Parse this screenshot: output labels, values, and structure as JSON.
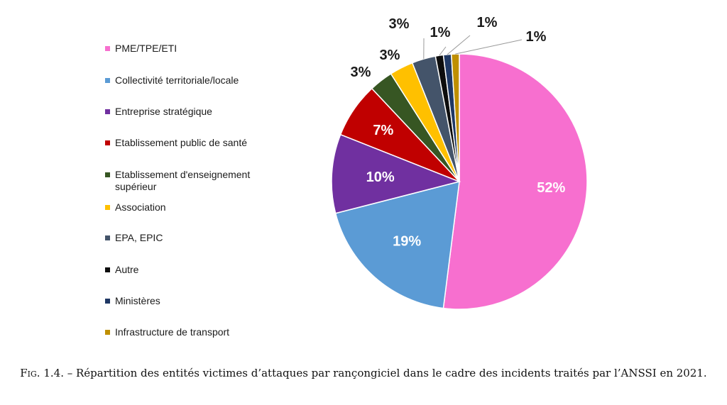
{
  "chart_data": {
    "type": "pie",
    "title": "",
    "legend_position": "left",
    "slices": [
      {
        "label": "PME/TPE/ETI",
        "value": 52,
        "value_label": "52%",
        "color": "#f76fcf"
      },
      {
        "label": "Collectivité territoriale/locale",
        "value": 19,
        "value_label": "19%",
        "color": "#5b9bd5"
      },
      {
        "label": "Entreprise stratégique",
        "value": 10,
        "value_label": "10%",
        "color": "#7030a0"
      },
      {
        "label": "Etablissement public de santé",
        "value": 7,
        "value_label": "7%",
        "color": "#c00000"
      },
      {
        "label": "Etablissement d'enseignement supérieur",
        "value": 3,
        "value_label": "3%",
        "color": "#375623"
      },
      {
        "label": "Association",
        "value": 3,
        "value_label": "3%",
        "color": "#ffc000"
      },
      {
        "label": "EPA, EPIC",
        "value": 3,
        "value_label": "3%",
        "color": "#44546a"
      },
      {
        "label": "Autre",
        "value": 1,
        "value_label": "1%",
        "color": "#0d0d0d"
      },
      {
        "label": "Ministères",
        "value": 1,
        "value_label": "1%",
        "color": "#1f3864"
      },
      {
        "label": "Infrastructure de transport",
        "value": 1,
        "value_label": "",
        "color": "#bf8f00"
      }
    ]
  },
  "caption": {
    "fig_label": "Fig. 1.4.",
    "text": " – Répartition des entités victimes d’attaques par rançongiciel dans le cadre des incidents traités par l’ANSSI en 2021."
  }
}
